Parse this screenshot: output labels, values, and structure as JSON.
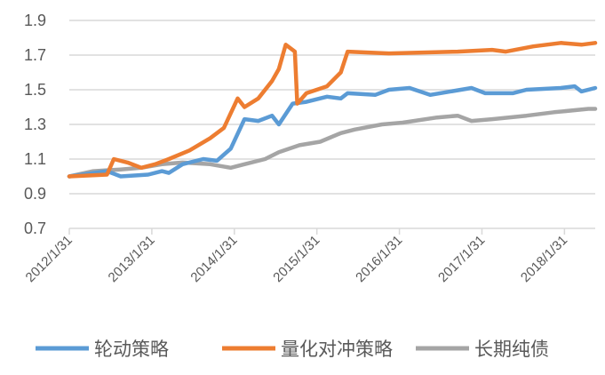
{
  "chart_data": {
    "type": "line",
    "title": "",
    "xlabel": "",
    "ylabel": "",
    "ylim": [
      0.7,
      1.9
    ],
    "yticks": [
      "0.7",
      "0.9",
      "1.1",
      "1.3",
      "1.5",
      "1.7",
      "1.9"
    ],
    "xticks": [
      "2012/1/31",
      "2013/1/31",
      "2014/1/31",
      "2015/1/31",
      "2016/1/31",
      "2017/1/31",
      "2018/1/31"
    ],
    "xlim": [
      "2012/1/31",
      "2018/6/15"
    ],
    "grid": true,
    "legend_position": "bottom",
    "series": [
      {
        "name": "轮动策略",
        "color": "#5B9BD5",
        "points": [
          [
            "2012/1/31",
            1.0
          ],
          [
            "2012/7/15",
            1.03
          ],
          [
            "2012/9/15",
            1.0
          ],
          [
            "2013/1/15",
            1.01
          ],
          [
            "2013/3/15",
            1.03
          ],
          [
            "2013/4/15",
            1.02
          ],
          [
            "2013/6/15",
            1.07
          ],
          [
            "2013/9/15",
            1.1
          ],
          [
            "2013/11/15",
            1.09
          ],
          [
            "2014/1/15",
            1.16
          ],
          [
            "2014/3/15",
            1.33
          ],
          [
            "2014/5/15",
            1.32
          ],
          [
            "2014/7/15",
            1.35
          ],
          [
            "2014/8/15",
            1.3
          ],
          [
            "2014/10/15",
            1.42
          ],
          [
            "2014/12/15",
            1.43
          ],
          [
            "2015/3/15",
            1.46
          ],
          [
            "2015/5/15",
            1.45
          ],
          [
            "2015/6/15",
            1.48
          ],
          [
            "2015/10/15",
            1.47
          ],
          [
            "2015/12/15",
            1.5
          ],
          [
            "2016/3/15",
            1.51
          ],
          [
            "2016/6/15",
            1.47
          ],
          [
            "2016/12/15",
            1.51
          ],
          [
            "2017/2/15",
            1.48
          ],
          [
            "2017/6/15",
            1.48
          ],
          [
            "2017/8/15",
            1.5
          ],
          [
            "2018/1/15",
            1.51
          ],
          [
            "2018/3/15",
            1.52
          ],
          [
            "2018/4/15",
            1.49
          ],
          [
            "2018/6/15",
            1.51
          ]
        ]
      },
      {
        "name": "量化对冲策略",
        "color": "#ED7D31",
        "points": [
          [
            "2012/1/31",
            1.0
          ],
          [
            "2012/7/15",
            1.01
          ],
          [
            "2012/8/15",
            1.1
          ],
          [
            "2012/10/15",
            1.08
          ],
          [
            "2012/12/15",
            1.05
          ],
          [
            "2013/2/15",
            1.07
          ],
          [
            "2013/4/15",
            1.1
          ],
          [
            "2013/7/15",
            1.15
          ],
          [
            "2013/10/15",
            1.22
          ],
          [
            "2013/12/15",
            1.28
          ],
          [
            "2014/2/15",
            1.45
          ],
          [
            "2014/3/15",
            1.4
          ],
          [
            "2014/5/15",
            1.45
          ],
          [
            "2014/7/15",
            1.55
          ],
          [
            "2014/8/15",
            1.62
          ],
          [
            "2014/9/15",
            1.76
          ],
          [
            "2014/10/25",
            1.72
          ],
          [
            "2014/11/5",
            1.42
          ],
          [
            "2014/12/15",
            1.48
          ],
          [
            "2015/3/15",
            1.52
          ],
          [
            "2015/5/15",
            1.6
          ],
          [
            "2015/6/15",
            1.72
          ],
          [
            "2015/12/15",
            1.71
          ],
          [
            "2016/10/15",
            1.72
          ],
          [
            "2017/3/15",
            1.73
          ],
          [
            "2017/5/15",
            1.72
          ],
          [
            "2017/9/15",
            1.75
          ],
          [
            "2018/1/15",
            1.77
          ],
          [
            "2018/4/15",
            1.76
          ],
          [
            "2018/6/15",
            1.77
          ]
        ]
      },
      {
        "name": "长期纯债",
        "color": "#A5A5A5",
        "points": [
          [
            "2012/1/31",
            1.0
          ],
          [
            "2012/5/15",
            1.03
          ],
          [
            "2012/9/15",
            1.04
          ],
          [
            "2012/12/15",
            1.05
          ],
          [
            "2013/3/15",
            1.07
          ],
          [
            "2013/6/15",
            1.08
          ],
          [
            "2013/10/15",
            1.07
          ],
          [
            "2014/1/15",
            1.05
          ],
          [
            "2014/3/15",
            1.07
          ],
          [
            "2014/6/15",
            1.1
          ],
          [
            "2014/8/15",
            1.14
          ],
          [
            "2014/11/15",
            1.18
          ],
          [
            "2015/2/15",
            1.2
          ],
          [
            "2015/5/15",
            1.25
          ],
          [
            "2015/7/15",
            1.27
          ],
          [
            "2015/11/15",
            1.3
          ],
          [
            "2016/2/15",
            1.31
          ],
          [
            "2016/7/15",
            1.34
          ],
          [
            "2016/10/15",
            1.35
          ],
          [
            "2016/12/15",
            1.32
          ],
          [
            "2017/3/15",
            1.33
          ],
          [
            "2017/8/15",
            1.35
          ],
          [
            "2017/12/15",
            1.37
          ],
          [
            "2018/5/15",
            1.39
          ],
          [
            "2018/6/15",
            1.39
          ]
        ]
      }
    ]
  }
}
